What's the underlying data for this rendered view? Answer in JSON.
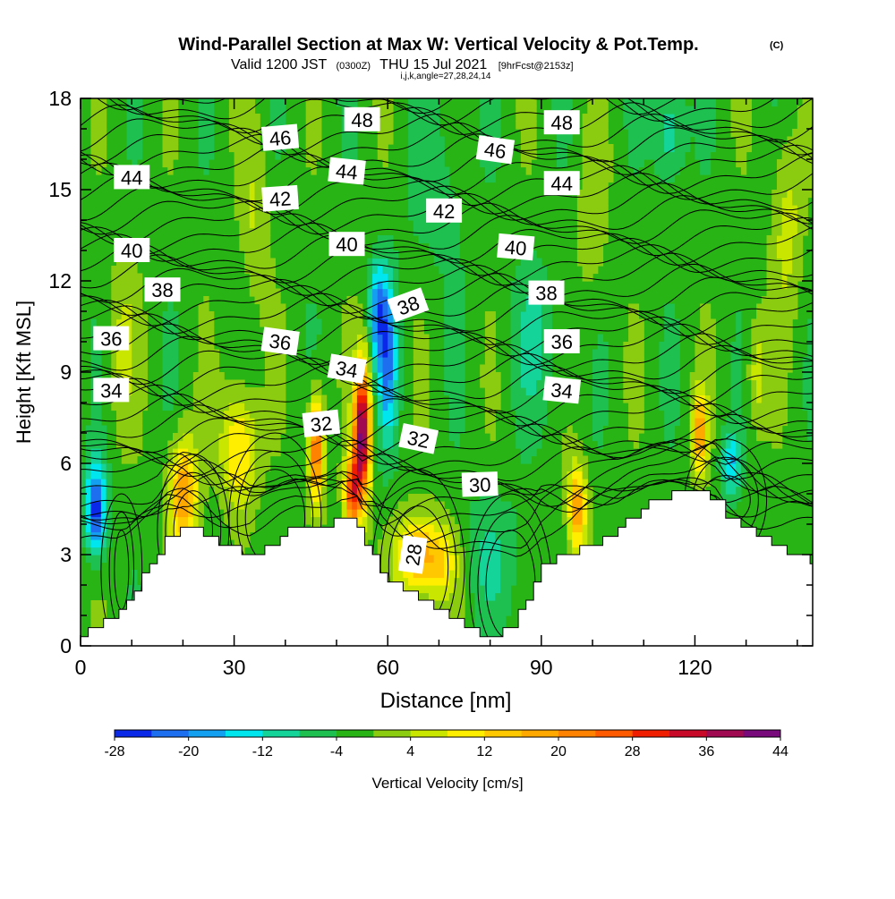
{
  "chart_data": {
    "type": "heatmap",
    "title": "Wind-Parallel Section at Max W: Vertical Velocity & Pot.Temp.",
    "title_mark": "(C)",
    "subtitle_valid": "Valid 1200 JST",
    "subtitle_utc": "(0300Z)",
    "subtitle_date": "THU 15 Jul 2021",
    "subtitle_fcst": "[9hrFcst@2153z]",
    "subtitle_ijk": "i,j,k,angle=27,28,24,14",
    "xlabel": "Distance [nm]",
    "ylabel": "Height [Kft MSL]",
    "xlim": [
      0,
      143
    ],
    "ylim": [
      0,
      18
    ],
    "x_ticks": [
      0,
      30,
      60,
      90,
      120
    ],
    "y_ticks": [
      0,
      3,
      6,
      9,
      12,
      15,
      18
    ],
    "colorbar": {
      "label": "Vertical Velocity [cm/s]",
      "levels": [
        -28,
        -24,
        -20,
        -16,
        -12,
        -8,
        -4,
        0,
        4,
        8,
        12,
        16,
        20,
        24,
        28,
        32,
        36,
        40,
        44
      ],
      "tick_labels": [
        -28,
        -20,
        -12,
        -4,
        4,
        12,
        20,
        28,
        36,
        44
      ],
      "colors": [
        "#0a28e8",
        "#1e6ef0",
        "#14a0f0",
        "#00e6ee",
        "#14d49a",
        "#1ec050",
        "#28b414",
        "#8ccc10",
        "#c8e600",
        "#ffee00",
        "#ffc800",
        "#ffa800",
        "#ff8200",
        "#ff5a00",
        "#f01e00",
        "#c80a28",
        "#a00a50",
        "#780a7c"
      ]
    },
    "terrain": [
      [
        0,
        0.3
      ],
      [
        3,
        0.7
      ],
      [
        6,
        1.0
      ],
      [
        9,
        1.5
      ],
      [
        12,
        2.3
      ],
      [
        15,
        3.0
      ],
      [
        17,
        3.6
      ],
      [
        20,
        3.9
      ],
      [
        24,
        3.7
      ],
      [
        27,
        3.4
      ],
      [
        30,
        3.2
      ],
      [
        33,
        2.9
      ],
      [
        36,
        3.2
      ],
      [
        39,
        3.6
      ],
      [
        42,
        3.9
      ],
      [
        45,
        3.9
      ],
      [
        48,
        4.0
      ],
      [
        51,
        4.3
      ],
      [
        54,
        4.0
      ],
      [
        55,
        3.4
      ],
      [
        57,
        3.0
      ],
      [
        59,
        2.3
      ],
      [
        62,
        2.0
      ],
      [
        65,
        1.6
      ],
      [
        68,
        1.4
      ],
      [
        71,
        1.0
      ],
      [
        74,
        0.8
      ],
      [
        76,
        0.5
      ],
      [
        78,
        0.3
      ],
      [
        80,
        0.3
      ],
      [
        84,
        0.7
      ],
      [
        87,
        1.6
      ],
      [
        90,
        2.7
      ],
      [
        93,
        2.9
      ],
      [
        96,
        3.0
      ],
      [
        99,
        3.3
      ],
      [
        102,
        3.5
      ],
      [
        105,
        3.8
      ],
      [
        108,
        4.3
      ],
      [
        111,
        4.7
      ],
      [
        114,
        4.9
      ],
      [
        117,
        5.0
      ],
      [
        120,
        5.0
      ],
      [
        124,
        4.9
      ],
      [
        126,
        4.3
      ],
      [
        129,
        4.0
      ],
      [
        132,
        3.6
      ],
      [
        135,
        3.4
      ],
      [
        137,
        3.2
      ],
      [
        140,
        3.0
      ],
      [
        143,
        2.7
      ]
    ],
    "w_features": [
      {
        "x": 3,
        "y": 4.5,
        "sx": 2,
        "sy": 1.5,
        "w": -24
      },
      {
        "x": 55,
        "y": 7.0,
        "sx": 1.6,
        "sy": 2.2,
        "w": 44
      },
      {
        "x": 53,
        "y": 5.0,
        "sx": 1.5,
        "sy": 1.3,
        "w": 28
      },
      {
        "x": 46,
        "y": 6.5,
        "sx": 1.5,
        "sy": 1.8,
        "w": 28
      },
      {
        "x": 20,
        "y": 5.0,
        "sx": 2.8,
        "sy": 1.8,
        "w": 22
      },
      {
        "x": 31,
        "y": 6.5,
        "sx": 3.5,
        "sy": 2.0,
        "w": 16
      },
      {
        "x": 65,
        "y": 3.0,
        "sx": 4.0,
        "sy": 1.3,
        "w": 16
      },
      {
        "x": 70,
        "y": 2.8,
        "sx": 4.0,
        "sy": 1.3,
        "w": 14
      },
      {
        "x": 97,
        "y": 4.5,
        "sx": 1.8,
        "sy": 1.4,
        "w": 22
      },
      {
        "x": 121,
        "y": 7.0,
        "sx": 1.5,
        "sy": 1.4,
        "w": 20
      },
      {
        "x": 60,
        "y": 9.5,
        "sx": 1.8,
        "sy": 2.6,
        "w": -18
      },
      {
        "x": 58,
        "y": 11.0,
        "sx": 1.6,
        "sy": 1.6,
        "w": -16
      },
      {
        "x": 127,
        "y": 6.0,
        "sx": 2.0,
        "sy": 1.0,
        "w": -14
      },
      {
        "x": 115,
        "y": 17.0,
        "sx": 3.0,
        "sy": 1.8,
        "w": -10
      },
      {
        "x": 132,
        "y": 9.0,
        "sx": 2.0,
        "sy": 2.0,
        "w": 8
      },
      {
        "x": 8,
        "y": 10.0,
        "sx": 3.0,
        "sy": 3.0,
        "w": 6
      },
      {
        "x": 89,
        "y": 10.0,
        "sx": 5.0,
        "sy": 2.5,
        "w": -6
      },
      {
        "x": 80,
        "y": 3.0,
        "sx": 6.0,
        "sy": 2.0,
        "w": -6
      },
      {
        "x": 70,
        "y": 15.0,
        "sx": 6.0,
        "sy": 3.0,
        "w": -4
      },
      {
        "x": 138,
        "y": 14.0,
        "sx": 3.0,
        "sy": 3.0,
        "w": 8
      },
      {
        "x": 34,
        "y": 14.0,
        "sx": 3.0,
        "sy": 3.0,
        "w": 6
      },
      {
        "x": 100,
        "y": 14.0,
        "sx": 3.0,
        "sy": 3.0,
        "w": 5
      }
    ],
    "theta_labels": [
      {
        "text": "48",
        "x": 55,
        "y": 17.3,
        "angle": 0
      },
      {
        "text": "48",
        "x": 94,
        "y": 17.2,
        "angle": 0
      },
      {
        "text": "46",
        "x": 39,
        "y": 16.7,
        "angle": -5
      },
      {
        "text": "46",
        "x": 81,
        "y": 16.3,
        "angle": 8
      },
      {
        "text": "44",
        "x": 10,
        "y": 15.4,
        "angle": 0
      },
      {
        "text": "44",
        "x": 52,
        "y": 15.6,
        "angle": 6
      },
      {
        "text": "44",
        "x": 94,
        "y": 15.2,
        "angle": 0
      },
      {
        "text": "42",
        "x": 39,
        "y": 14.7,
        "angle": -4
      },
      {
        "text": "42",
        "x": 71,
        "y": 14.3,
        "angle": 0
      },
      {
        "text": "40",
        "x": 10,
        "y": 13.0,
        "angle": 0
      },
      {
        "text": "40",
        "x": 52,
        "y": 13.2,
        "angle": 0
      },
      {
        "text": "40",
        "x": 85,
        "y": 13.1,
        "angle": 5
      },
      {
        "text": "38",
        "x": 16,
        "y": 11.7,
        "angle": 0
      },
      {
        "text": "38",
        "x": 64,
        "y": 11.2,
        "angle": -20
      },
      {
        "text": "38",
        "x": 91,
        "y": 11.6,
        "angle": 0
      },
      {
        "text": "36",
        "x": 6,
        "y": 10.1,
        "angle": 0
      },
      {
        "text": "36",
        "x": 39,
        "y": 10.0,
        "angle": 8
      },
      {
        "text": "36",
        "x": 94,
        "y": 10.0,
        "angle": 0
      },
      {
        "text": "34",
        "x": 6,
        "y": 8.4,
        "angle": 0
      },
      {
        "text": "34",
        "x": 52,
        "y": 9.1,
        "angle": 10
      },
      {
        "text": "34",
        "x": 94,
        "y": 8.4,
        "angle": 6
      },
      {
        "text": "32",
        "x": 47,
        "y": 7.3,
        "angle": -6
      },
      {
        "text": "32",
        "x": 66,
        "y": 6.8,
        "angle": 12
      },
      {
        "text": "30",
        "x": 78,
        "y": 5.3,
        "angle": -2
      },
      {
        "text": "28",
        "x": 65,
        "y": 3.0,
        "angle": -82
      }
    ],
    "theta_levels": [
      28,
      30,
      32,
      34,
      36,
      38,
      40,
      42,
      44,
      46,
      48
    ]
  }
}
